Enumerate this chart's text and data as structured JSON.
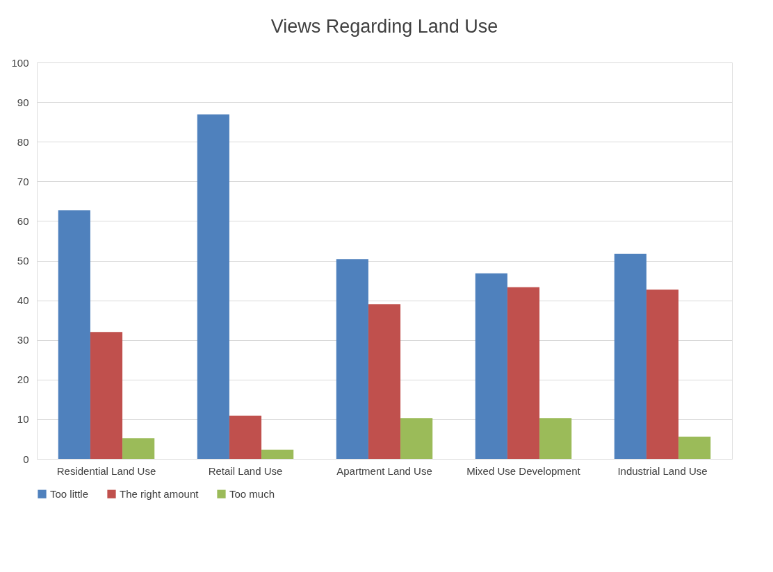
{
  "chart_data": {
    "type": "bar",
    "title": "Views Regarding Land Use",
    "categories": [
      "Residential Land Use",
      "Retail Land Use",
      "Apartment Land Use",
      "Mixed Use Development",
      "Industrial Land Use"
    ],
    "series": [
      {
        "name": "Too little",
        "color": "#4f81bd",
        "values": [
          62.7,
          86.9,
          50.4,
          46.8,
          51.7
        ]
      },
      {
        "name": "The right amount",
        "color": "#c0504d",
        "values": [
          32.0,
          10.9,
          39.0,
          43.3,
          42.7
        ]
      },
      {
        "name": "Too much",
        "color": "#9bbb59",
        "values": [
          5.2,
          2.3,
          10.3,
          10.3,
          5.6
        ]
      }
    ],
    "ylim": [
      0,
      100
    ],
    "yticks": [
      0,
      10,
      20,
      30,
      40,
      50,
      60,
      70,
      80,
      90,
      100
    ],
    "grid": "y",
    "legend": "bottom"
  }
}
